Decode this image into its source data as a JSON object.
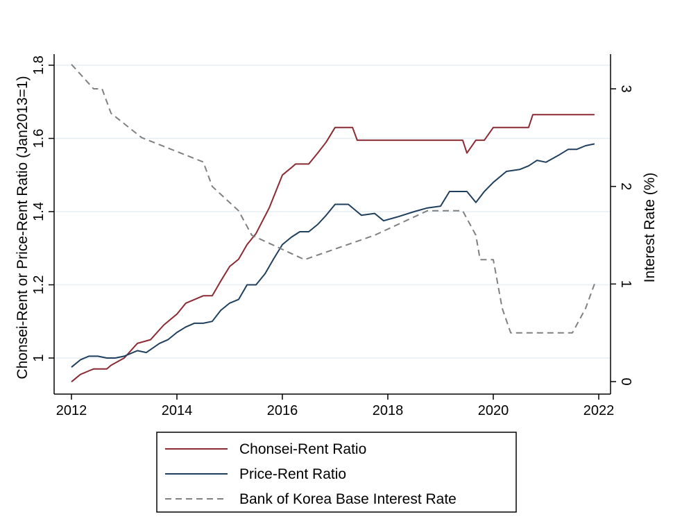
{
  "chart_data": {
    "type": "line",
    "title": "",
    "xlabel": "",
    "ylabel": "Chonsei-Rent or Price-Rent Ratio (Jan2013=1)",
    "y2label": "Interest Rate (%)",
    "xlim": [
      2012,
      2022
    ],
    "ylim": [
      0.9,
      1.8
    ],
    "y2lim": [
      0,
      3.25
    ],
    "x_ticks": [
      2012,
      2014,
      2016,
      2018,
      2020,
      2022
    ],
    "x_tick_labels": [
      "2012",
      "2014",
      "2016",
      "2018",
      "2020",
      "2022"
    ],
    "y_ticks": [
      1,
      1.2,
      1.4,
      1.6,
      1.8
    ],
    "y_tick_labels": [
      "1",
      "1.2",
      "1.4",
      "1.6",
      "1.8"
    ],
    "y2_ticks": [
      0,
      1,
      2,
      3
    ],
    "y2_tick_labels": [
      "0",
      "1",
      "2",
      "3"
    ],
    "grid": "horizontal at left-axis ticks",
    "legend_position": "bottom",
    "series": [
      {
        "name": "Chonsei-Rent Ratio",
        "axis": "left",
        "color": "#8b2a32",
        "style": "solid",
        "x": [
          2012.0,
          2012.17,
          2012.33,
          2012.42,
          2012.67,
          2012.75,
          2013.0,
          2013.25,
          2013.5,
          2013.75,
          2014.0,
          2014.17,
          2014.5,
          2014.67,
          2014.83,
          2015.0,
          2015.17,
          2015.33,
          2015.5,
          2015.75,
          2016.0,
          2016.17,
          2016.25,
          2016.5,
          2016.67,
          2016.83,
          2017.0,
          2017.08,
          2017.33,
          2017.42,
          2018.0,
          2019.0,
          2019.42,
          2019.5,
          2019.67,
          2019.83,
          2020.0,
          2020.5,
          2020.67,
          2020.75,
          2021.0,
          2021.5,
          2021.92
        ],
        "values": [
          0.935,
          0.955,
          0.965,
          0.97,
          0.97,
          0.98,
          1.0,
          1.04,
          1.05,
          1.09,
          1.12,
          1.15,
          1.17,
          1.17,
          1.21,
          1.25,
          1.27,
          1.31,
          1.34,
          1.41,
          1.5,
          1.52,
          1.53,
          1.53,
          1.56,
          1.59,
          1.63,
          1.63,
          1.63,
          1.595,
          1.595,
          1.595,
          1.595,
          1.56,
          1.595,
          1.595,
          1.63,
          1.63,
          1.63,
          1.665,
          1.665,
          1.665,
          1.665
        ]
      },
      {
        "name": "Price-Rent Ratio",
        "axis": "left",
        "color": "#1f3f5e",
        "style": "solid",
        "x": [
          2012.0,
          2012.17,
          2012.33,
          2012.5,
          2012.67,
          2012.83,
          2013.0,
          2013.25,
          2013.42,
          2013.67,
          2013.83,
          2014.0,
          2014.17,
          2014.33,
          2014.5,
          2014.67,
          2014.83,
          2015.0,
          2015.17,
          2015.33,
          2015.5,
          2015.67,
          2015.83,
          2016.0,
          2016.17,
          2016.33,
          2016.5,
          2016.67,
          2016.83,
          2017.0,
          2017.08,
          2017.25,
          2017.5,
          2017.75,
          2017.92,
          2018.17,
          2018.5,
          2018.75,
          2019.0,
          2019.17,
          2019.5,
          2019.67,
          2019.83,
          2020.0,
          2020.25,
          2020.5,
          2020.67,
          2020.83,
          2021.0,
          2021.25,
          2021.42,
          2021.58,
          2021.75,
          2021.92
        ],
        "values": [
          0.975,
          0.995,
          1.005,
          1.005,
          1.0,
          1.0,
          1.005,
          1.02,
          1.015,
          1.04,
          1.05,
          1.07,
          1.085,
          1.095,
          1.095,
          1.1,
          1.13,
          1.15,
          1.16,
          1.2,
          1.2,
          1.23,
          1.27,
          1.31,
          1.33,
          1.345,
          1.345,
          1.365,
          1.39,
          1.42,
          1.42,
          1.42,
          1.39,
          1.395,
          1.375,
          1.385,
          1.4,
          1.41,
          1.415,
          1.455,
          1.455,
          1.425,
          1.455,
          1.48,
          1.51,
          1.515,
          1.525,
          1.54,
          1.535,
          1.555,
          1.57,
          1.57,
          1.58,
          1.585
        ]
      },
      {
        "name": "Bank of Korea Base Interest Rate",
        "axis": "right",
        "color": "#808080",
        "style": "dashed",
        "x": [
          2012.0,
          2012.42,
          2012.58,
          2012.75,
          2013.33,
          2014.5,
          2014.67,
          2015.17,
          2015.42,
          2016.42,
          2017.75,
          2018.75,
          2019.42,
          2019.67,
          2019.75,
          2020.0,
          2020.17,
          2020.33,
          2021.5,
          2021.75,
          2021.92
        ],
        "values": [
          3.25,
          3.0,
          3.0,
          2.75,
          2.5,
          2.25,
          2.0,
          1.75,
          1.5,
          1.25,
          1.5,
          1.75,
          1.75,
          1.5,
          1.25,
          1.25,
          0.75,
          0.5,
          0.5,
          0.75,
          1.0
        ]
      }
    ]
  }
}
